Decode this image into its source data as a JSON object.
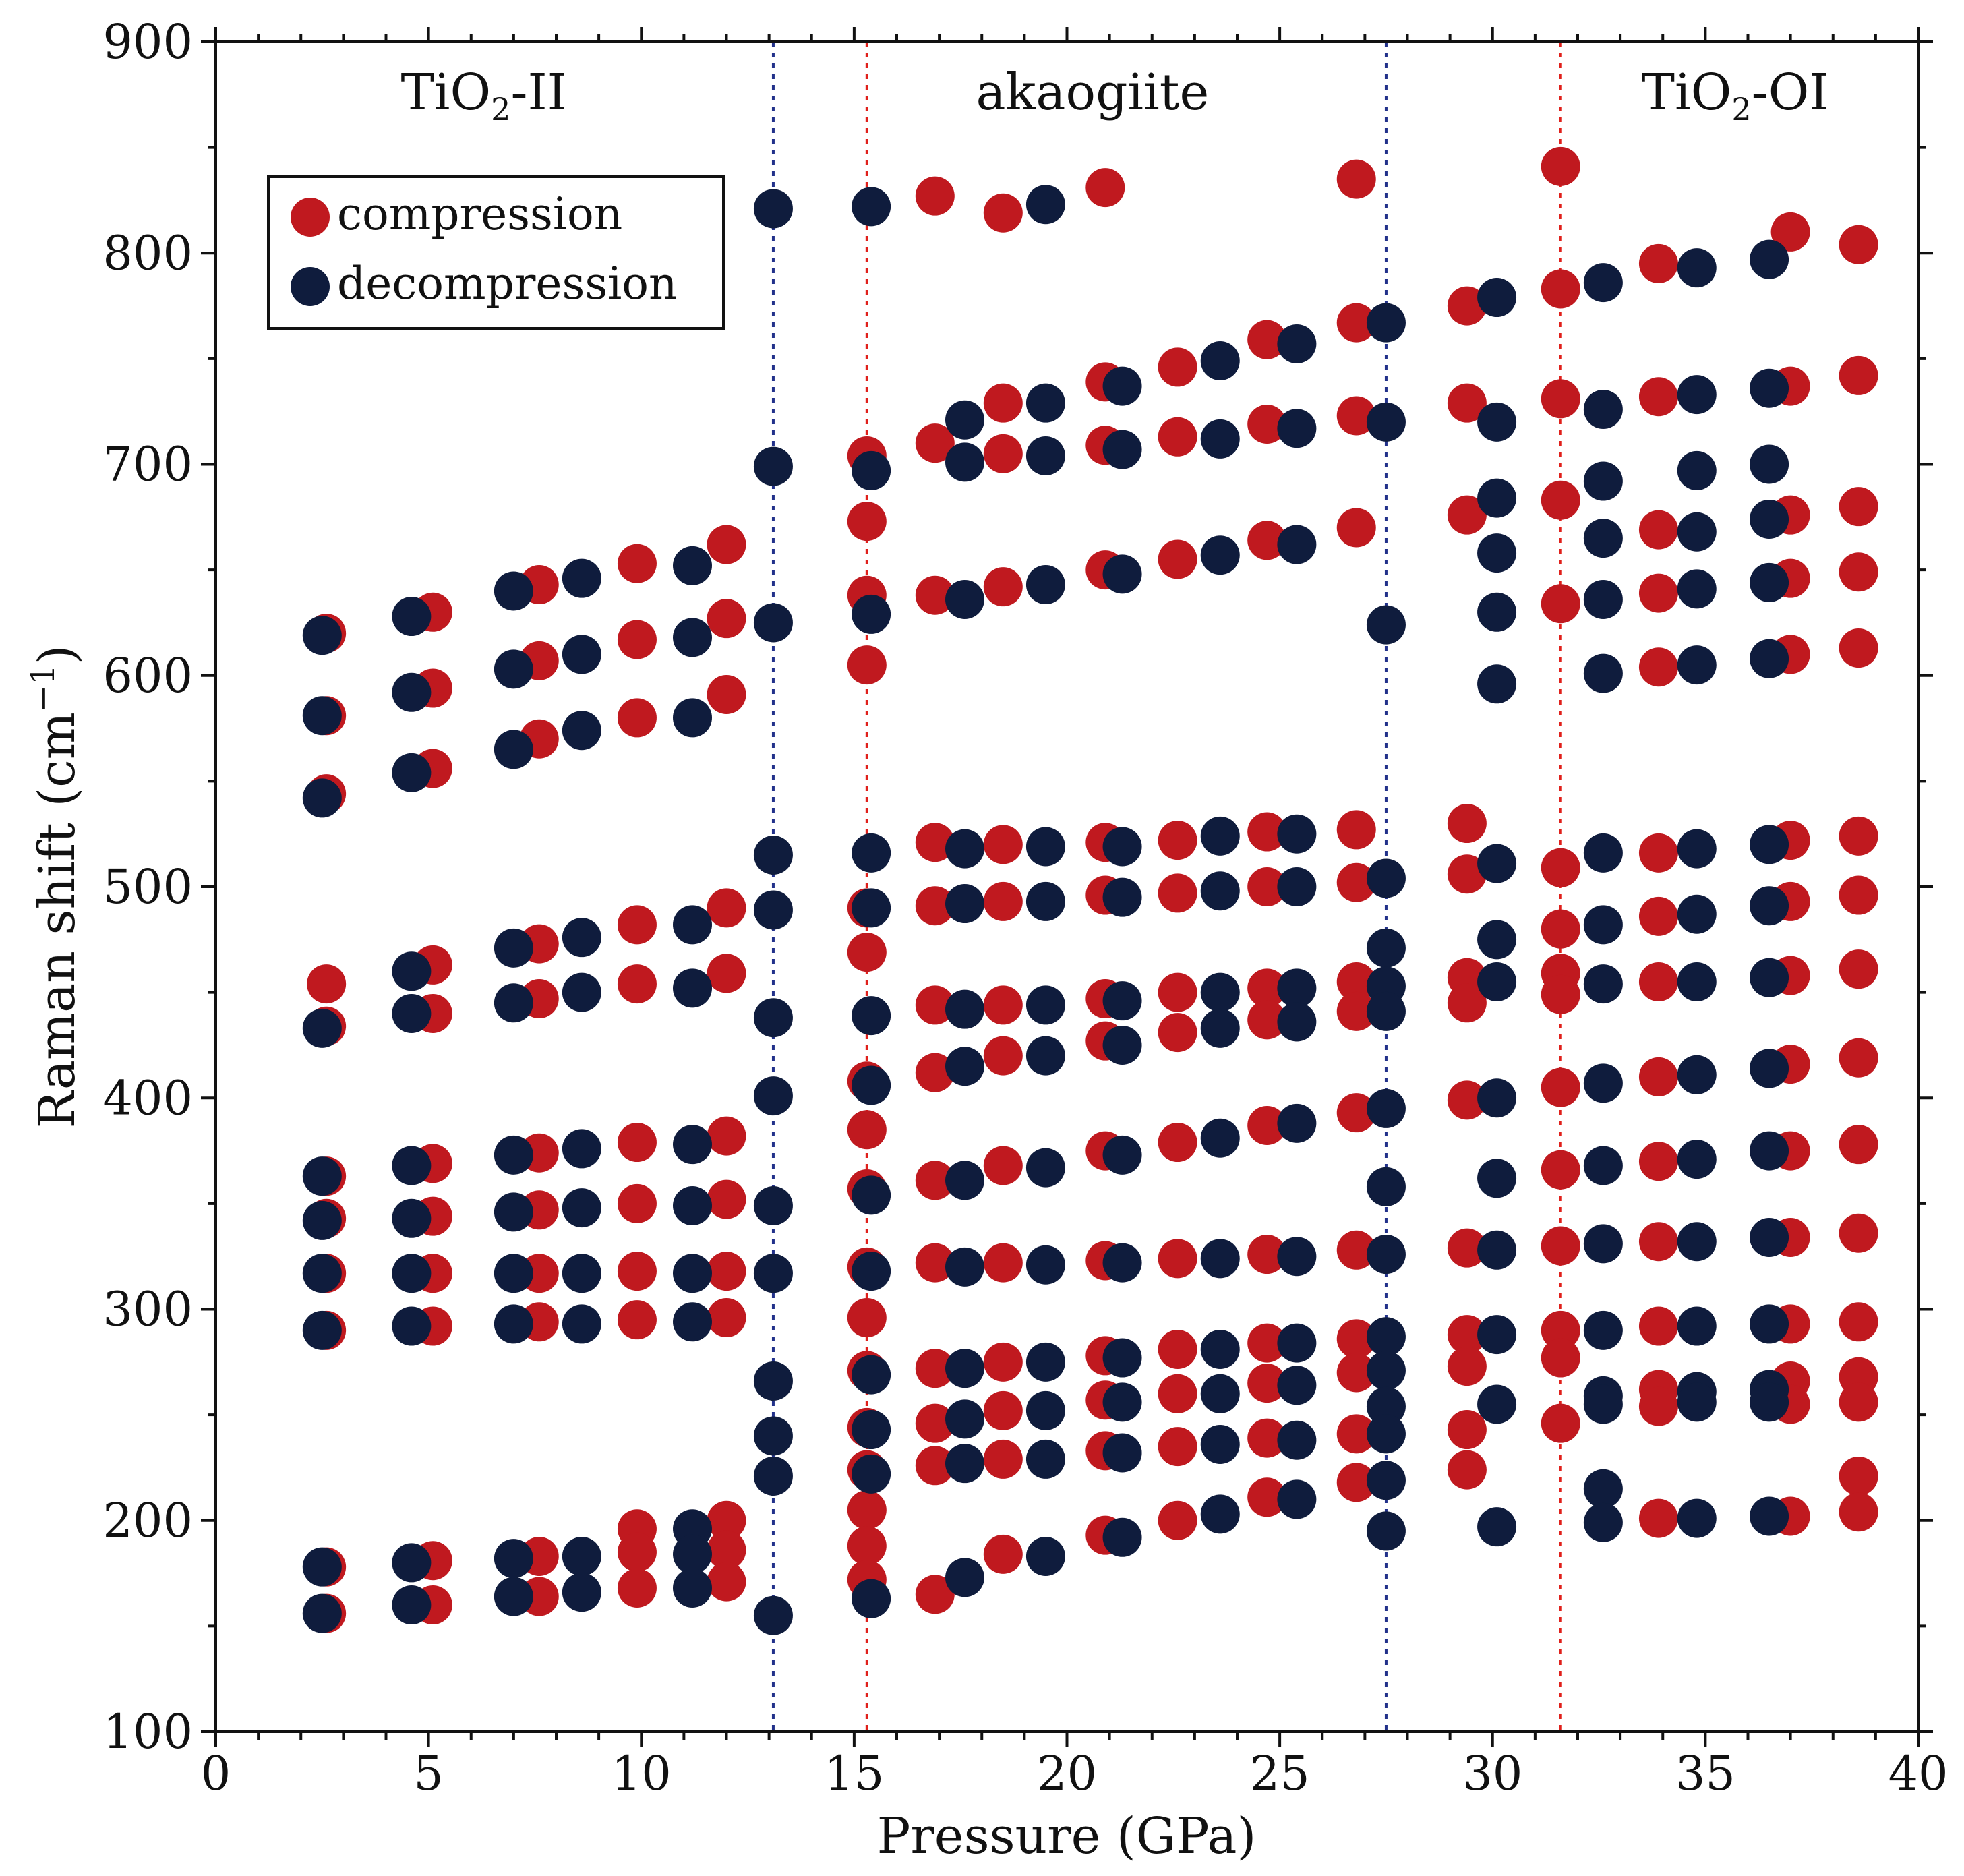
{
  "chart_data": {
    "type": "scatter",
    "title": "",
    "xlabel": "Pressure (GPa)",
    "ylabel": "Raman shift (cm",
    "ylabel_sup": "−1",
    "ylabel_close": ")",
    "xlim": [
      0,
      40
    ],
    "ylim": [
      100,
      900
    ],
    "x_ticks": [
      0,
      5,
      10,
      15,
      20,
      25,
      30,
      35,
      40
    ],
    "y_ticks": [
      100,
      200,
      300,
      400,
      500,
      600,
      700,
      800,
      900
    ],
    "grid": false,
    "legend_position": "top-left",
    "colors": {
      "compression": "#c0191f",
      "decompression": "#0f1c3d",
      "blue_line": "#22318a",
      "red_line": "#e0201b"
    },
    "phase_labels": [
      {
        "main": "TiO",
        "sub": "2",
        "suffix": "-II",
        "x_center": 6.3
      },
      {
        "main": "akaogiite",
        "sub": "",
        "suffix": "",
        "x_center": 20.6
      },
      {
        "main": "TiO",
        "sub": "2",
        "suffix": "-OI",
        "x_center": 35.7
      }
    ],
    "boundaries": [
      {
        "pressure": 13.1,
        "style": "decompression",
        "color_key": "blue_line"
      },
      {
        "pressure": 15.3,
        "style": "compression",
        "color_key": "red_line"
      },
      {
        "pressure": 27.5,
        "style": "decompression",
        "color_key": "blue_line"
      },
      {
        "pressure": 31.6,
        "style": "compression",
        "color_key": "red_line"
      }
    ],
    "series": [
      {
        "name": "compression",
        "color_key": "compression",
        "points": [
          {
            "x": 2.6,
            "y": [
              620,
              581,
              544,
              454,
              434,
              363,
              343,
              317,
              290,
              178,
              156
            ]
          },
          {
            "x": 5.1,
            "y": [
              630,
              594,
              556,
              463,
              440,
              369,
              344,
              317,
              292,
              181,
              160
            ]
          },
          {
            "x": 7.6,
            "y": [
              643,
              607,
              570,
              473,
              447,
              374,
              347,
              317,
              294,
              183,
              164
            ]
          },
          {
            "x": 9.9,
            "y": [
              653,
              617,
              580,
              482,
              454,
              379,
              350,
              318,
              295,
              196,
              185,
              168
            ]
          },
          {
            "x": 12.0,
            "y": [
              662,
              627,
              591,
              490,
              459,
              382,
              352,
              318,
              296,
              200,
              186,
              171
            ]
          },
          {
            "x": 15.3,
            "y": [
              704,
              673,
              638,
              605,
              490,
              469,
              408,
              385,
              357,
              320,
              296,
              271,
              244,
              224,
              205,
              188,
              172
            ]
          },
          {
            "x": 16.9,
            "y": [
              827,
              710,
              638,
              521,
              491,
              444,
              412,
              361,
              322,
              272,
              246,
              226,
              165
            ]
          },
          {
            "x": 18.5,
            "y": [
              819,
              729,
              705,
              642,
              520,
              493,
              444,
              420,
              368,
              322,
              275,
              252,
              229,
              184
            ]
          },
          {
            "x": 20.9,
            "y": [
              831,
              739,
              709,
              650,
              521,
              496,
              447,
              427,
              375,
              323,
              278,
              257,
              233,
              193
            ]
          },
          {
            "x": 22.6,
            "y": [
              746,
              713,
              655,
              522,
              497,
              450,
              431,
              379,
              324,
              281,
              260,
              235,
              200
            ]
          },
          {
            "x": 24.7,
            "y": [
              759,
              719,
              664,
              526,
              500,
              452,
              437,
              387,
              326,
              284,
              265,
              239,
              211
            ]
          },
          {
            "x": 26.8,
            "y": [
              835,
              767,
              723,
              670,
              527,
              502,
              455,
              441,
              393,
              328,
              286,
              270,
              241,
              218
            ]
          },
          {
            "x": 29.4,
            "y": [
              775,
              729,
              676,
              530,
              506,
              457,
              445,
              399,
              329,
              288,
              273,
              243,
              224
            ]
          },
          {
            "x": 31.6,
            "y": [
              841,
              783,
              731,
              683,
              634,
              509,
              480,
              459,
              449,
              405,
              366,
              330,
              290,
              277,
              246
            ]
          },
          {
            "x": 33.9,
            "y": [
              795,
              732,
              669,
              639,
              604,
              516,
              486,
              455,
              410,
              370,
              332,
              292,
              262,
              254,
              201
            ]
          },
          {
            "x": 37.0,
            "y": [
              810,
              737,
              676,
              646,
              610,
              522,
              493,
              458,
              416,
              375,
              334,
              293,
              266,
              255,
              202
            ]
          },
          {
            "x": 38.6,
            "y": [
              804,
              742,
              680,
              649,
              613,
              524,
              496,
              461,
              419,
              378,
              336,
              294,
              268,
              256,
              221,
              204
            ]
          }
        ]
      },
      {
        "name": "decompression",
        "color_key": "decompression",
        "points": [
          {
            "x": 2.5,
            "y": [
              619,
              581,
              542,
              433,
              363,
              342,
              317,
              290,
              178,
              156
            ]
          },
          {
            "x": 4.6,
            "y": [
              628,
              592,
              554,
              460,
              440,
              368,
              343,
              317,
              292,
              180,
              160
            ]
          },
          {
            "x": 7.0,
            "y": [
              640,
              603,
              565,
              471,
              445,
              373,
              346,
              317,
              293,
              182,
              164
            ]
          },
          {
            "x": 8.6,
            "y": [
              646,
              610,
              574,
              476,
              450,
              376,
              348,
              317,
              293,
              183,
              166
            ]
          },
          {
            "x": 11.2,
            "y": [
              652,
              618,
              580,
              482,
              452,
              378,
              349,
              317,
              294,
              196,
              184,
              168
            ]
          },
          {
            "x": 13.1,
            "y": [
              821,
              699,
              625,
              515,
              489,
              438,
              401,
              349,
              317,
              266,
              240,
              221,
              155
            ]
          },
          {
            "x": 15.4,
            "y": [
              822,
              697,
              629,
              516,
              490,
              439,
              406,
              354,
              318,
              269,
              243,
              222,
              163
            ]
          },
          {
            "x": 17.6,
            "y": [
              721,
              701,
              636,
              518,
              492,
              442,
              415,
              361,
              320,
              272,
              248,
              227,
              173
            ]
          },
          {
            "x": 19.5,
            "y": [
              823,
              729,
              704,
              643,
              519,
              493,
              444,
              420,
              367,
              321,
              275,
              252,
              229,
              183
            ]
          },
          {
            "x": 21.3,
            "y": [
              737,
              707,
              648,
              519,
              495,
              446,
              425,
              373,
              322,
              277,
              256,
              232,
              192
            ]
          },
          {
            "x": 23.6,
            "y": [
              749,
              712,
              657,
              524,
              498,
              450,
              433,
              381,
              324,
              281,
              260,
              236,
              203
            ]
          },
          {
            "x": 25.4,
            "y": [
              757,
              717,
              662,
              525,
              500,
              452,
              436,
              388,
              325,
              284,
              264,
              238,
              210
            ]
          },
          {
            "x": 27.5,
            "y": [
              767,
              720,
              624,
              504,
              471,
              453,
              441,
              395,
              358,
              326,
              287,
              271,
              254,
              241,
              219,
              195
            ]
          },
          {
            "x": 30.1,
            "y": [
              779,
              720,
              684,
              658,
              630,
              596,
              511,
              475,
              455,
              400,
              362,
              328,
              288,
              255,
              197
            ]
          },
          {
            "x": 32.6,
            "y": [
              786,
              726,
              692,
              665,
              636,
              601,
              516,
              482,
              454,
              407,
              368,
              331,
              290,
              259,
              255,
              215,
              199
            ]
          },
          {
            "x": 34.8,
            "y": [
              793,
              733,
              697,
              668,
              641,
              605,
              518,
              487,
              455,
              411,
              371,
              332,
              292,
              261,
              256,
              201
            ]
          },
          {
            "x": 36.5,
            "y": [
              797,
              736,
              700,
              674,
              644,
              608,
              520,
              491,
              457,
              414,
              375,
              334,
              293,
              262,
              256,
              202
            ]
          }
        ]
      }
    ]
  }
}
